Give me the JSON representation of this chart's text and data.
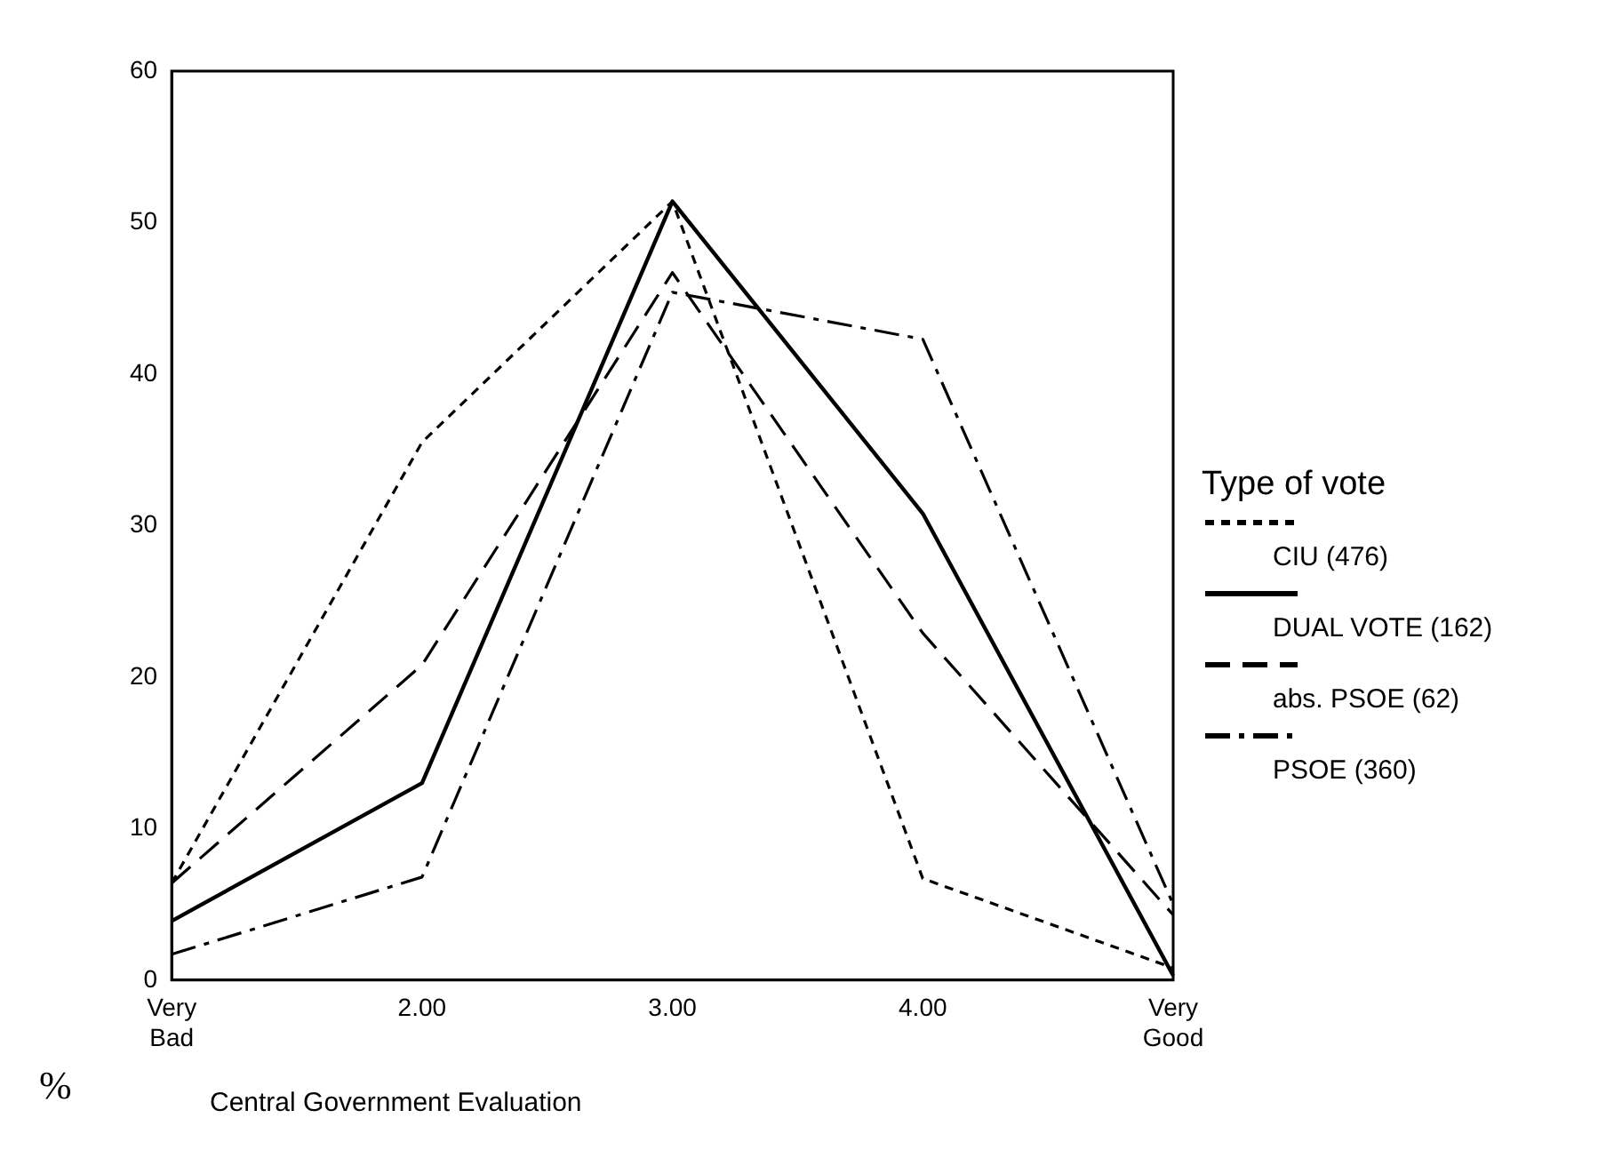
{
  "chart_data": {
    "type": "line",
    "xlabel": "Central Government Evaluation",
    "ylabel": "%",
    "legend_title": "Type of vote",
    "legend": "right",
    "grid": false,
    "marker": "none",
    "categories": [
      "Very Bad",
      "2.00",
      "3.00",
      "4.00",
      "Very Good"
    ],
    "ylim": [
      0,
      60
    ],
    "yticks": [
      0,
      10,
      20,
      30,
      40,
      50,
      60
    ],
    "series": [
      {
        "name": "CIU (476)",
        "color": "#000000",
        "line_style": "dotted",
        "values": [
          6.4,
          35.5,
          51.4,
          6.7,
          0.8
        ]
      },
      {
        "name": "DUAL VOTE (162)",
        "color": "#000000",
        "line_style": "solid",
        "values": [
          3.9,
          13.0,
          51.4,
          30.8,
          0.3
        ]
      },
      {
        "name": "abs. PSOE (62)",
        "color": "#000000",
        "line_style": "dashed",
        "values": [
          6.4,
          20.8,
          46.7,
          22.9,
          4.3
        ]
      },
      {
        "name": "PSOE (360)",
        "color": "#000000",
        "line_style": "dashdot",
        "values": [
          1.7,
          6.8,
          45.4,
          42.3,
          5.0
        ]
      }
    ]
  }
}
